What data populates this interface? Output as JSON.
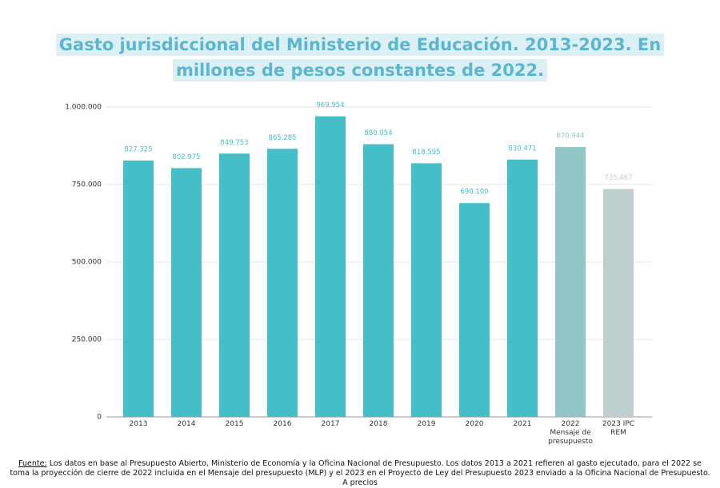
{
  "chart_data": {
    "type": "bar",
    "title": "Gasto jurisdiccional del Ministerio de Educación. 2013-2023. En millones de pesos constantes de 2022.",
    "categories": [
      "2013",
      "2014",
      "2015",
      "2016",
      "2017",
      "2018",
      "2019",
      "2020",
      "2021",
      "2022 Mensaje de presupuesto",
      "2023 IPC REM"
    ],
    "values": [
      827325,
      802975,
      849753,
      865285,
      969954,
      880054,
      818595,
      690100,
      830471,
      870944,
      735467
    ],
    "value_labels": [
      "827.325",
      "802.975",
      "849.753",
      "865.285",
      "969.954",
      "880.054",
      "818.595",
      "690.100",
      "830.471",
      "870.944",
      "735.467"
    ],
    "colors": [
      "#45bec7",
      "#45bec7",
      "#45bec7",
      "#45bec7",
      "#45bec7",
      "#45bec7",
      "#45bec7",
      "#45bec7",
      "#45bec7",
      "#93c6c7",
      "#bfcecf"
    ],
    "ylim": [
      0,
      1000000
    ],
    "yticks": [
      0,
      {
        "value": 250000,
        "label": "250.000"
      },
      {
        "value": 500000,
        "label": "500.000"
      },
      {
        "value": 750000,
        "label": "750.000"
      },
      {
        "value": 1000000,
        "label": "1.000.000"
      }
    ],
    "grid": true,
    "source_label": "Fuente:",
    "source_text": " Los datos en base al Presupuesto Abierto, Ministerio de Economía y la Oficina Nacional de Presupuesto. Los datos 2013 a 2021 refieren al gasto ejecutado, para el 2022 se toma la proyección de cierre de 2022 incluida en el Mensaje del presupuesto (MLP) y el 2023 en el Proyecto de Ley del Presupuesto 2023 enviado a la Oficina Nacional de Presupuesto. A precios"
  }
}
